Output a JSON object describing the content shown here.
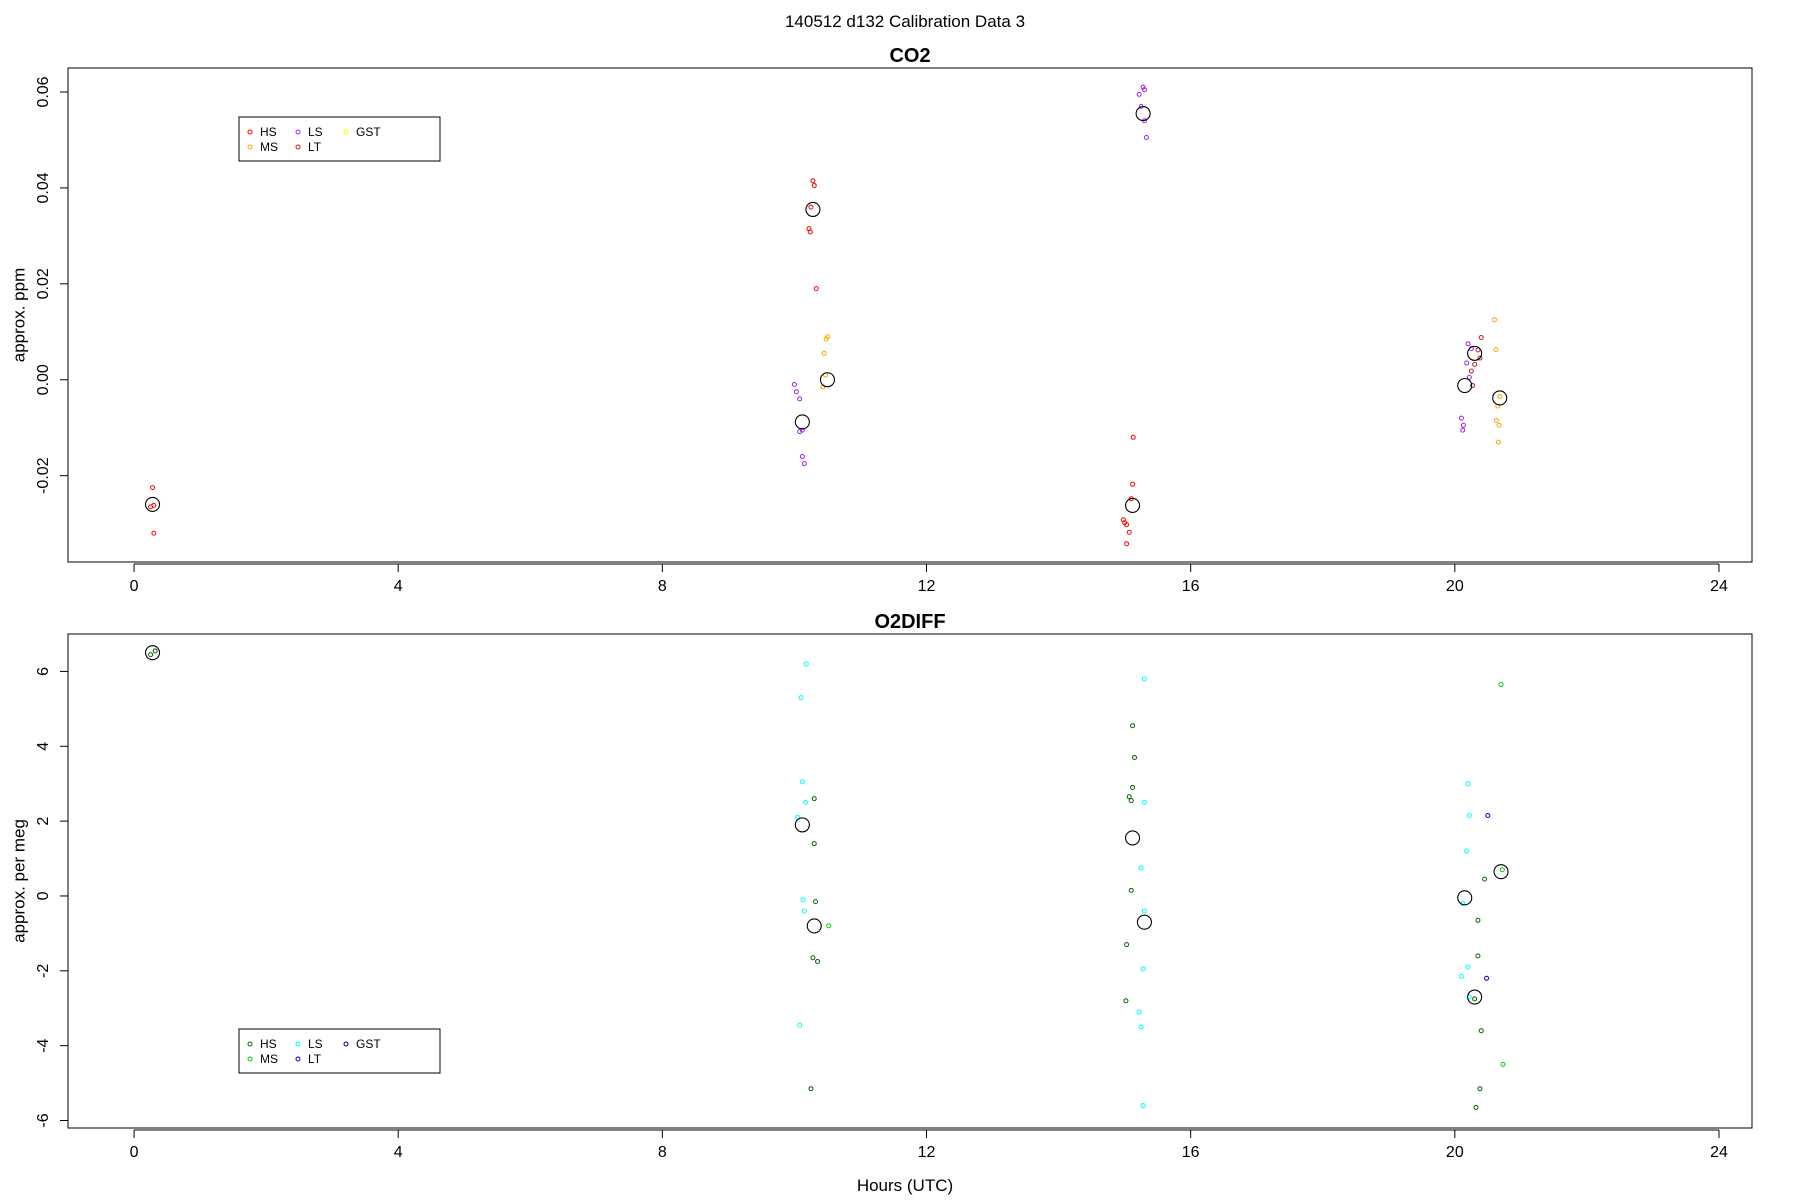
{
  "figure": {
    "title": "140512   d132   Calibration Data 3",
    "xlabel": "Hours (UTC)"
  },
  "chart_data": [
    {
      "type": "scatter",
      "title": "CO2",
      "xlabel": "",
      "ylabel": "approx. ppm",
      "xlim": [
        -1,
        24.5
      ],
      "ylim": [
        -0.038,
        0.065
      ],
      "xticks": [
        0,
        4,
        8,
        12,
        16,
        20,
        24
      ],
      "yticks": [
        -0.02,
        0.0,
        0.02,
        0.04,
        0.06
      ],
      "ytick_labels": [
        "-0.02",
        "0.00",
        "0.02",
        "0.04",
        "0.06"
      ],
      "grid": false,
      "legend_position": "top-left",
      "legend": [
        {
          "name": "HS",
          "color": "#ff0000"
        },
        {
          "name": "MS",
          "color": "#ffa500"
        },
        {
          "name": "LS",
          "color": "#a020f0"
        },
        {
          "name": "LT",
          "color": "#b22222"
        },
        {
          "name": "GST",
          "color": "#ffff00"
        }
      ],
      "series": [
        {
          "name": "HS",
          "color": "#ff0000",
          "points": [
            [
              0.28,
              -0.0225
            ],
            [
              0.25,
              -0.0265
            ],
            [
              0.3,
              -0.0262
            ],
            [
              0.3,
              -0.032
            ],
            [
              10.28,
              0.0415
            ],
            [
              10.3,
              0.0405
            ],
            [
              10.25,
              0.036
            ],
            [
              10.22,
              0.0315
            ],
            [
              10.24,
              0.0308
            ],
            [
              10.33,
              0.019
            ],
            [
              15.13,
              -0.012
            ],
            [
              15.12,
              -0.0218
            ],
            [
              15.1,
              -0.0248
            ],
            [
              14.98,
              -0.0292
            ],
            [
              15.03,
              -0.0302
            ],
            [
              15.0,
              -0.0298
            ],
            [
              15.07,
              -0.0318
            ],
            [
              15.03,
              -0.0342
            ]
          ]
        },
        {
          "name": "MS",
          "color": "#ffa500",
          "points": [
            [
              10.5,
              0.009
            ],
            [
              10.48,
              0.0085
            ],
            [
              10.45,
              0.0055
            ],
            [
              10.47,
              0.001
            ],
            [
              10.43,
              -0.0015
            ],
            [
              20.6,
              0.0125
            ],
            [
              20.62,
              0.0063
            ],
            [
              20.68,
              -0.0035
            ],
            [
              20.65,
              -0.0055
            ],
            [
              20.63,
              -0.0085
            ],
            [
              20.67,
              -0.0095
            ],
            [
              20.66,
              -0.013
            ]
          ]
        },
        {
          "name": "LS",
          "color": "#a020f0",
          "points": [
            [
              15.28,
              0.061
            ],
            [
              15.3,
              0.0605
            ],
            [
              15.22,
              0.0595
            ],
            [
              15.25,
              0.057
            ],
            [
              15.3,
              0.054
            ],
            [
              15.33,
              0.0505
            ],
            [
              10.0,
              -0.001
            ],
            [
              10.03,
              -0.0025
            ],
            [
              10.08,
              -0.004
            ],
            [
              10.12,
              -0.0105
            ],
            [
              10.08,
              -0.0108
            ],
            [
              10.12,
              -0.016
            ],
            [
              10.15,
              -0.0175
            ],
            [
              20.1,
              -0.008
            ],
            [
              20.13,
              -0.0095
            ],
            [
              20.12,
              -0.0105
            ],
            [
              20.2,
              0.0075
            ],
            [
              20.25,
              0.0065
            ],
            [
              20.18,
              0.0035
            ],
            [
              20.22,
              0.0005
            ]
          ]
        },
        {
          "name": "LT",
          "color": "#b22222",
          "points": [
            [
              20.4,
              0.0088
            ],
            [
              20.35,
              0.0062
            ],
            [
              20.38,
              0.0045
            ],
            [
              20.3,
              0.0032
            ],
            [
              20.25,
              0.0018
            ],
            [
              20.27,
              -0.0012
            ]
          ]
        },
        {
          "name": "GST",
          "color": "#ffff00",
          "points": []
        },
        {
          "name": "",
          "color": "#000000",
          "marker": "large-circle",
          "points": [
            [
              0.28,
              -0.026
            ],
            [
              10.28,
              0.0355
            ],
            [
              15.28,
              0.0555
            ],
            [
              10.12,
              -0.0088
            ],
            [
              10.5,
              0.0
            ],
            [
              15.12,
              -0.0262
            ],
            [
              20.3,
              0.0055
            ],
            [
              20.15,
              -0.0012
            ],
            [
              20.68,
              -0.0038
            ]
          ]
        }
      ]
    },
    {
      "type": "scatter",
      "title": "O2DIFF",
      "xlabel": "Hours (UTC)",
      "ylabel": "approx. per meg",
      "xlim": [
        -1,
        24.5
      ],
      "ylim": [
        -6.2,
        7.0
      ],
      "xticks": [
        0,
        4,
        8,
        12,
        16,
        20,
        24
      ],
      "yticks": [
        -6,
        -4,
        -2,
        0,
        2,
        4,
        6
      ],
      "ytick_labels": [
        "-6",
        "-4",
        "-2",
        "0",
        "2",
        "4",
        "6"
      ],
      "grid": false,
      "legend_position": "bottom-left",
      "legend": [
        {
          "name": "HS",
          "color": "#006400"
        },
        {
          "name": "MS",
          "color": "#00cd00"
        },
        {
          "name": "LS",
          "color": "#00ffff"
        },
        {
          "name": "LT",
          "color": "#0000cd"
        },
        {
          "name": "GST",
          "color": "#00008b"
        }
      ],
      "series": [
        {
          "name": "HS",
          "color": "#006400",
          "points": [
            [
              0.25,
              6.45
            ],
            [
              0.32,
              6.55
            ],
            [
              10.3,
              2.6
            ],
            [
              10.3,
              1.4
            ],
            [
              10.32,
              -0.15
            ],
            [
              10.28,
              -1.65
            ],
            [
              10.35,
              -1.75
            ],
            [
              10.25,
              -5.15
            ],
            [
              15.12,
              4.55
            ],
            [
              15.15,
              3.7
            ],
            [
              15.12,
              2.9
            ],
            [
              15.07,
              2.65
            ],
            [
              15.1,
              2.55
            ],
            [
              15.1,
              0.15
            ],
            [
              15.03,
              -1.3
            ],
            [
              15.02,
              -2.8
            ],
            [
              20.45,
              0.45
            ],
            [
              20.35,
              -0.65
            ],
            [
              20.35,
              -1.6
            ],
            [
              20.3,
              -2.75
            ],
            [
              20.4,
              -3.6
            ],
            [
              20.38,
              -5.15
            ],
            [
              20.32,
              -5.65
            ]
          ]
        },
        {
          "name": "MS",
          "color": "#00cd00",
          "points": [
            [
              20.7,
              5.65
            ],
            [
              20.72,
              0.7
            ],
            [
              20.73,
              -4.5
            ],
            [
              10.52,
              -0.8
            ]
          ]
        },
        {
          "name": "LS",
          "color": "#00ffff",
          "points": [
            [
              10.18,
              6.2
            ],
            [
              10.1,
              5.3
            ],
            [
              10.12,
              3.05
            ],
            [
              10.17,
              2.5
            ],
            [
              10.05,
              2.1
            ],
            [
              10.13,
              -0.1
            ],
            [
              10.15,
              -0.4
            ],
            [
              10.08,
              -3.45
            ],
            [
              15.3,
              5.8
            ],
            [
              15.3,
              2.5
            ],
            [
              15.25,
              0.75
            ],
            [
              15.3,
              -0.4
            ],
            [
              15.28,
              -1.95
            ],
            [
              15.22,
              -3.1
            ],
            [
              15.25,
              -3.5
            ],
            [
              15.28,
              -5.6
            ],
            [
              20.2,
              3.0
            ],
            [
              20.22,
              2.15
            ],
            [
              20.18,
              1.2
            ],
            [
              20.12,
              -0.2
            ],
            [
              20.2,
              -1.9
            ],
            [
              20.1,
              -2.15
            ],
            [
              20.22,
              -2.7
            ]
          ]
        },
        {
          "name": "LT",
          "color": "#0000cd",
          "points": [
            [
              20.5,
              2.15
            ],
            [
              20.48,
              -2.2
            ]
          ]
        },
        {
          "name": "GST",
          "color": "#00008b",
          "points": []
        },
        {
          "name": "",
          "color": "#000000",
          "marker": "large-circle",
          "points": [
            [
              0.28,
              6.5
            ],
            [
              10.12,
              1.9
            ],
            [
              10.3,
              -0.8
            ],
            [
              15.12,
              1.55
            ],
            [
              15.3,
              -0.7
            ],
            [
              20.15,
              -0.05
            ],
            [
              20.7,
              0.65
            ],
            [
              20.3,
              -2.7
            ]
          ]
        }
      ]
    }
  ]
}
